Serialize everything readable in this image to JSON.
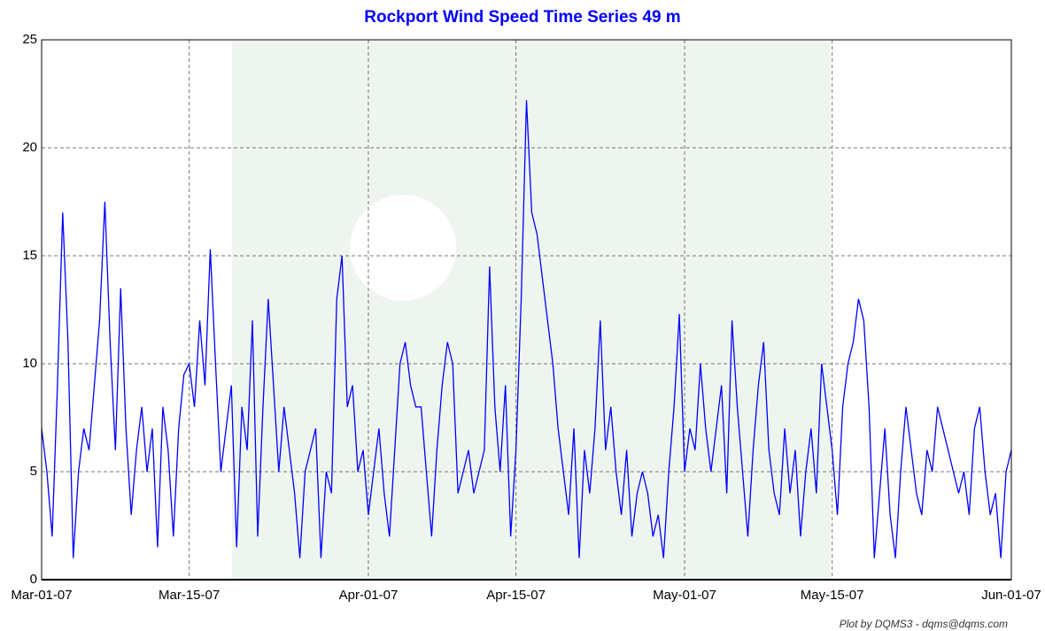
{
  "chart_data": {
    "type": "line",
    "title": "Rockport Wind Speed Time Series 49 m",
    "note": "Plot by DQMS3 - dqms@dqms.com",
    "color": "#0000ff",
    "grid": true,
    "xlim": [
      0,
      92
    ],
    "xticks": [
      {
        "value": 0,
        "label": "Mar-01-07"
      },
      {
        "value": 14,
        "label": "Mar-15-07"
      },
      {
        "value": 31,
        "label": "Apr-01-07"
      },
      {
        "value": 45,
        "label": "Apr-15-07"
      },
      {
        "value": 61,
        "label": "May-01-07"
      },
      {
        "value": 75,
        "label": "May-15-07"
      },
      {
        "value": 92,
        "label": "Jun-01-07"
      }
    ],
    "ylim": [
      0,
      25
    ],
    "yticks": [
      0,
      5,
      10,
      15,
      20,
      25
    ],
    "x": [
      0,
      0.5,
      1,
      1.5,
      2,
      2.5,
      3,
      3.5,
      4,
      4.5,
      5,
      5.5,
      6,
      6.5,
      7,
      7.5,
      8,
      8.5,
      9,
      9.5,
      10,
      10.5,
      11,
      11.5,
      12,
      12.5,
      13,
      13.5,
      14,
      14.5,
      15,
      15.5,
      16,
      16.5,
      17,
      17.5,
      18,
      18.5,
      19,
      19.5,
      20,
      20.5,
      21,
      21.5,
      22,
      22.5,
      23,
      23.5,
      24,
      24.5,
      25,
      25.5,
      26,
      26.5,
      27,
      27.5,
      28,
      28.5,
      29,
      29.5,
      30,
      30.5,
      31,
      31.5,
      32,
      32.5,
      33,
      33.5,
      34,
      34.5,
      35,
      35.5,
      36,
      36.5,
      37,
      37.5,
      38,
      38.5,
      39,
      39.5,
      40,
      40.5,
      41,
      41.5,
      42,
      42.5,
      43,
      43.5,
      44,
      44.5,
      45,
      45.5,
      46,
      46.5,
      47,
      47.5,
      48,
      48.5,
      49,
      49.5,
      50,
      50.5,
      51,
      51.5,
      52,
      52.5,
      53,
      53.5,
      54,
      54.5,
      55,
      55.5,
      56,
      56.5,
      57,
      57.5,
      58,
      58.5,
      59,
      59.5,
      60,
      60.5,
      61,
      61.5,
      62,
      62.5,
      63,
      63.5,
      64,
      64.5,
      65,
      65.5,
      66,
      66.5,
      67,
      67.5,
      68,
      68.5,
      69,
      69.5,
      70,
      70.5,
      71,
      71.5,
      72,
      72.5,
      73,
      73.5,
      74,
      74.5,
      75,
      75.5,
      76,
      76.5,
      77,
      77.5,
      78,
      78.5,
      79,
      79.5,
      80,
      80.5,
      81,
      81.5,
      82,
      82.5,
      83,
      83.5,
      84,
      84.5,
      85,
      85.5,
      86,
      86.5,
      87,
      87.5,
      88,
      88.5,
      89,
      89.5,
      90,
      90.5,
      91,
      91.5,
      92
    ],
    "values": [
      7,
      5,
      2,
      9,
      17,
      11,
      1,
      5,
      7,
      6,
      9,
      12,
      17.5,
      11,
      6,
      13.5,
      7,
      3,
      6,
      8,
      5,
      7,
      1.5,
      8,
      6,
      2,
      7,
      9.5,
      10,
      8,
      12,
      9,
      15.3,
      10,
      5,
      7,
      9,
      1.5,
      8,
      6,
      12,
      2,
      8,
      13,
      9,
      5,
      8,
      6,
      4,
      1,
      5,
      6,
      7,
      1,
      5,
      4,
      13,
      15,
      8,
      9,
      5,
      6,
      3,
      5,
      7,
      4,
      2,
      6,
      10,
      11,
      9,
      8,
      8,
      5,
      2,
      6,
      9,
      11,
      10,
      4,
      5,
      6,
      4,
      5,
      6,
      14.5,
      8,
      5,
      9,
      2,
      6,
      13,
      22.2,
      17,
      16,
      14,
      12,
      10,
      7,
      5,
      3,
      7,
      1,
      6,
      4,
      7,
      12,
      6,
      8,
      5,
      3,
      6,
      2,
      4,
      5,
      4,
      2,
      3,
      1,
      5,
      8,
      12.3,
      5,
      7,
      6,
      10,
      7,
      5,
      7,
      9,
      4,
      12,
      8,
      5,
      2,
      6,
      9,
      11,
      6,
      4,
      3,
      7,
      4,
      6,
      2,
      5,
      7,
      4,
      10,
      8,
      6,
      3,
      8,
      10,
      11,
      13,
      12,
      8,
      1,
      4,
      7,
      3,
      1,
      5,
      8,
      6,
      4,
      3,
      6,
      5,
      8,
      7,
      6,
      5,
      4,
      5,
      3,
      7,
      8,
      5,
      3,
      4,
      1,
      5,
      6
    ]
  }
}
